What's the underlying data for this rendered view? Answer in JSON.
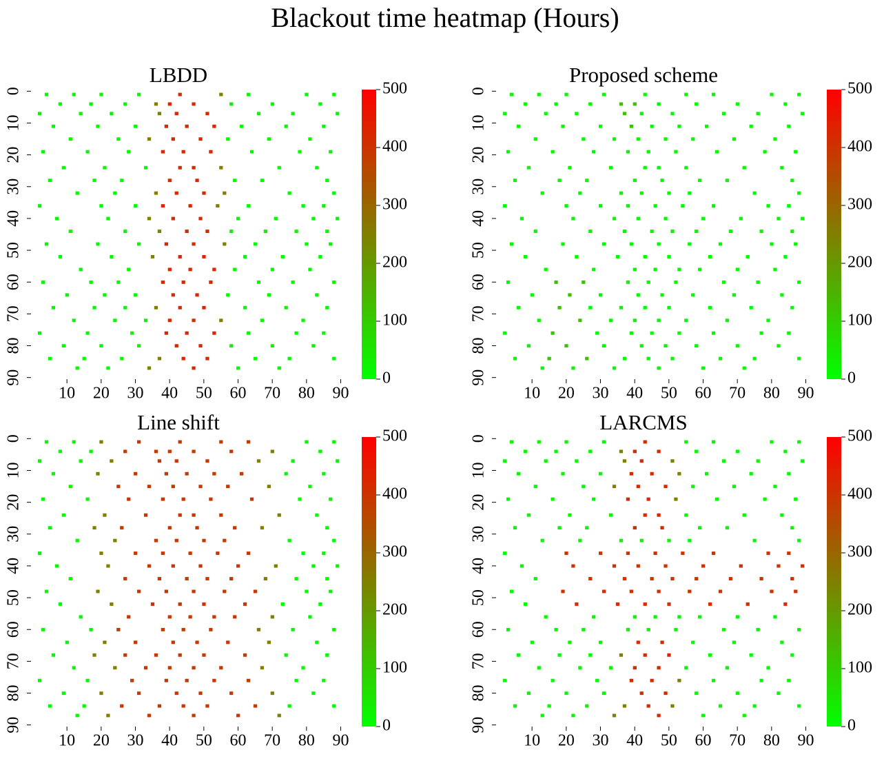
{
  "chart_data": {
    "type": "heatmap",
    "title": "Blackout time heatmap (Hours)",
    "xlim": [
      0,
      91
    ],
    "ylim": [
      0,
      91
    ],
    "xticks": [
      10,
      20,
      30,
      40,
      50,
      60,
      70,
      80,
      90
    ],
    "yticks": [
      0,
      10,
      20,
      30,
      40,
      50,
      60,
      70,
      80,
      90
    ],
    "colorbar": {
      "lim": [
        0,
        500
      ],
      "ticks": [
        0,
        100,
        200,
        300,
        400,
        500
      ],
      "colors": [
        "#00ff00",
        "#ff0000"
      ]
    },
    "x": [
      4,
      12,
      20,
      31,
      43,
      55,
      63,
      80,
      88,
      8,
      17,
      27,
      36,
      40,
      47,
      58,
      70,
      84,
      2,
      14,
      23,
      37,
      42,
      51,
      66,
      76,
      89,
      6,
      19,
      30,
      39,
      45,
      53,
      61,
      74,
      85,
      11,
      25,
      34,
      41,
      49,
      57,
      69,
      81,
      3,
      16,
      28,
      38,
      44,
      52,
      64,
      78,
      87,
      9,
      21,
      33,
      43,
      47,
      55,
      72,
      83,
      5,
      18,
      26,
      40,
      48,
      59,
      67,
      86,
      13,
      24,
      36,
      42,
      50,
      56,
      75,
      88,
      2,
      20,
      30,
      38,
      46,
      54,
      63,
      79,
      85,
      7,
      22,
      34,
      41,
      49,
      60,
      71,
      82,
      89,
      11,
      27,
      37,
      45,
      51,
      58,
      68,
      77,
      86,
      4,
      19,
      31,
      39,
      47,
      56,
      65,
      80,
      87,
      8,
      23,
      35,
      43,
      50,
      62,
      73,
      84,
      14,
      28,
      40,
      46,
      53,
      59,
      70,
      81,
      3,
      17,
      25,
      38,
      44,
      52,
      66,
      76,
      88,
      10,
      21,
      30,
      41,
      48,
      57,
      69,
      83,
      6,
      18,
      27,
      36,
      43,
      50,
      62,
      74,
      86,
      12,
      24,
      33,
      40,
      47,
      55,
      67,
      79,
      2,
      16,
      29,
      39,
      45,
      53,
      63,
      77,
      85,
      9,
      20,
      31,
      42,
      49,
      58,
      70,
      82,
      5,
      15,
      26,
      37,
      44,
      51,
      65,
      75,
      88,
      13,
      22,
      34,
      47,
      60,
      72
    ],
    "y": [
      1,
      1,
      1,
      1,
      1,
      1,
      1,
      1,
      1,
      4,
      4,
      4,
      4,
      4,
      4,
      4,
      4,
      4,
      7,
      7,
      7,
      7,
      7,
      7,
      7,
      7,
      7,
      11,
      11,
      11,
      11,
      11,
      11,
      11,
      11,
      11,
      15,
      15,
      15,
      15,
      15,
      15,
      15,
      15,
      19,
      19,
      19,
      19,
      19,
      19,
      19,
      19,
      19,
      24,
      24,
      24,
      24,
      24,
      24,
      24,
      24,
      28,
      28,
      28,
      28,
      28,
      28,
      28,
      28,
      32,
      32,
      32,
      32,
      32,
      32,
      32,
      32,
      36,
      36,
      36,
      36,
      36,
      36,
      36,
      36,
      36,
      40,
      40,
      40,
      40,
      40,
      40,
      40,
      40,
      40,
      44,
      44,
      44,
      44,
      44,
      44,
      44,
      44,
      44,
      48,
      48,
      48,
      48,
      48,
      48,
      48,
      48,
      48,
      52,
      52,
      52,
      52,
      52,
      52,
      52,
      52,
      56,
      56,
      56,
      56,
      56,
      56,
      56,
      56,
      60,
      60,
      60,
      60,
      60,
      60,
      60,
      60,
      60,
      64,
      64,
      64,
      64,
      64,
      64,
      64,
      64,
      68,
      68,
      68,
      68,
      68,
      68,
      68,
      68,
      68,
      72,
      72,
      72,
      72,
      72,
      72,
      72,
      72,
      76,
      76,
      76,
      76,
      76,
      76,
      76,
      76,
      76,
      80,
      80,
      80,
      80,
      80,
      80,
      80,
      80,
      84,
      84,
      84,
      84,
      84,
      84,
      84,
      84,
      84,
      87,
      87,
      87,
      87,
      87,
      87
    ],
    "panels": [
      {
        "title": "LBDD",
        "values": [
          12,
          12,
          12,
          12,
          420,
          250,
          12,
          12,
          12,
          12,
          12,
          12,
          250,
          420,
          420,
          12,
          12,
          12,
          12,
          12,
          12,
          250,
          420,
          420,
          12,
          12,
          12,
          12,
          12,
          12,
          420,
          420,
          420,
          12,
          12,
          12,
          12,
          12,
          250,
          420,
          420,
          12,
          12,
          12,
          12,
          12,
          12,
          420,
          420,
          420,
          12,
          12,
          12,
          12,
          12,
          12,
          420,
          420,
          250,
          12,
          12,
          12,
          12,
          12,
          420,
          420,
          12,
          12,
          12,
          12,
          12,
          250,
          420,
          420,
          250,
          12,
          12,
          12,
          12,
          12,
          420,
          420,
          250,
          12,
          12,
          12,
          12,
          12,
          250,
          420,
          420,
          12,
          12,
          12,
          12,
          12,
          12,
          250,
          420,
          420,
          12,
          12,
          12,
          12,
          12,
          12,
          12,
          420,
          420,
          250,
          12,
          12,
          12,
          12,
          12,
          250,
          420,
          420,
          12,
          12,
          12,
          12,
          12,
          420,
          420,
          420,
          12,
          12,
          12,
          12,
          12,
          12,
          420,
          420,
          420,
          12,
          12,
          12,
          12,
          12,
          12,
          420,
          420,
          12,
          12,
          12,
          12,
          12,
          12,
          250,
          420,
          420,
          12,
          12,
          12,
          12,
          12,
          12,
          420,
          420,
          250,
          12,
          12,
          12,
          12,
          12,
          420,
          420,
          420,
          12,
          12,
          12,
          12,
          12,
          12,
          420,
          420,
          12,
          12,
          12,
          12,
          12,
          12,
          250,
          420,
          420,
          12,
          12,
          12,
          12,
          12,
          250,
          420,
          12,
          12
        ]
      },
      {
        "title": "Proposed scheme",
        "values": [
          12,
          12,
          12,
          12,
          12,
          12,
          12,
          12,
          12,
          12,
          12,
          12,
          120,
          120,
          12,
          12,
          12,
          12,
          12,
          12,
          12,
          120,
          12,
          12,
          12,
          12,
          12,
          12,
          12,
          12,
          120,
          12,
          12,
          12,
          12,
          12,
          12,
          12,
          12,
          12,
          12,
          12,
          12,
          12,
          12,
          12,
          12,
          12,
          12,
          12,
          12,
          12,
          12,
          12,
          12,
          12,
          12,
          12,
          12,
          12,
          12,
          12,
          12,
          12,
          12,
          12,
          12,
          12,
          12,
          12,
          12,
          12,
          12,
          12,
          12,
          12,
          12,
          12,
          12,
          12,
          12,
          12,
          12,
          12,
          12,
          12,
          12,
          12,
          12,
          12,
          12,
          12,
          12,
          12,
          12,
          12,
          12,
          12,
          12,
          12,
          12,
          12,
          12,
          12,
          12,
          12,
          12,
          12,
          12,
          12,
          12,
          12,
          12,
          12,
          12,
          12,
          12,
          12,
          12,
          12,
          12,
          12,
          12,
          12,
          12,
          12,
          12,
          12,
          12,
          12,
          120,
          120,
          12,
          12,
          12,
          12,
          12,
          12,
          12,
          120,
          12,
          12,
          12,
          12,
          12,
          12,
          12,
          120,
          12,
          12,
          12,
          12,
          12,
          12,
          12,
          12,
          120,
          12,
          12,
          12,
          12,
          12,
          12,
          12,
          120,
          12,
          12,
          12,
          12,
          12,
          12,
          12,
          12,
          120,
          12,
          12,
          12,
          12,
          12,
          12,
          12,
          120,
          120,
          12,
          12,
          12,
          12,
          12,
          12,
          12,
          12,
          12,
          12,
          12,
          12
        ]
      },
      {
        "title": "Line shift",
        "values": [
          12,
          12,
          250,
          390,
          390,
          390,
          390,
          12,
          12,
          12,
          12,
          390,
          390,
          390,
          390,
          390,
          250,
          12,
          12,
          12,
          250,
          390,
          390,
          390,
          250,
          12,
          12,
          12,
          250,
          390,
          390,
          390,
          390,
          390,
          12,
          12,
          12,
          390,
          390,
          390,
          390,
          390,
          250,
          12,
          12,
          12,
          390,
          390,
          390,
          390,
          390,
          12,
          12,
          12,
          250,
          390,
          390,
          390,
          390,
          250,
          12,
          12,
          250,
          390,
          390,
          390,
          390,
          250,
          12,
          12,
          250,
          390,
          390,
          390,
          390,
          12,
          12,
          12,
          250,
          390,
          390,
          390,
          390,
          390,
          12,
          12,
          12,
          250,
          390,
          390,
          390,
          390,
          250,
          12,
          12,
          12,
          390,
          390,
          390,
          390,
          390,
          250,
          12,
          12,
          12,
          250,
          390,
          390,
          390,
          390,
          390,
          12,
          12,
          12,
          250,
          390,
          390,
          390,
          390,
          12,
          12,
          12,
          390,
          390,
          390,
          390,
          390,
          250,
          12,
          12,
          12,
          390,
          390,
          390,
          390,
          250,
          12,
          12,
          12,
          250,
          390,
          390,
          390,
          390,
          250,
          12,
          12,
          250,
          390,
          390,
          390,
          390,
          390,
          12,
          12,
          12,
          250,
          390,
          390,
          390,
          390,
          250,
          12,
          12,
          12,
          390,
          390,
          390,
          390,
          390,
          12,
          12,
          12,
          250,
          390,
          390,
          390,
          390,
          250,
          12,
          12,
          12,
          390,
          390,
          390,
          390,
          390,
          12,
          12,
          12,
          250,
          390,
          390,
          390,
          250
        ]
      },
      {
        "title": "LARCMS",
        "values": [
          12,
          12,
          12,
          12,
          420,
          12,
          12,
          12,
          12,
          12,
          12,
          12,
          250,
          420,
          420,
          12,
          12,
          12,
          12,
          12,
          12,
          250,
          420,
          250,
          12,
          12,
          12,
          12,
          12,
          12,
          420,
          420,
          250,
          12,
          12,
          12,
          12,
          12,
          250,
          420,
          420,
          12,
          12,
          12,
          12,
          12,
          12,
          420,
          420,
          250,
          12,
          12,
          12,
          12,
          12,
          12,
          420,
          420,
          12,
          12,
          12,
          12,
          12,
          12,
          420,
          420,
          12,
          12,
          12,
          12,
          12,
          12,
          12,
          12,
          12,
          12,
          12,
          12,
          400,
          400,
          400,
          400,
          400,
          400,
          400,
          400,
          12,
          400,
          400,
          400,
          400,
          400,
          400,
          400,
          400,
          12,
          400,
          400,
          400,
          400,
          400,
          400,
          400,
          400,
          12,
          400,
          400,
          400,
          400,
          400,
          400,
          400,
          400,
          12,
          400,
          400,
          400,
          400,
          400,
          400,
          400,
          12,
          12,
          12,
          12,
          12,
          12,
          12,
          12,
          12,
          12,
          12,
          12,
          12,
          12,
          12,
          12,
          12,
          12,
          12,
          12,
          420,
          420,
          12,
          12,
          12,
          12,
          12,
          12,
          250,
          420,
          420,
          12,
          12,
          12,
          12,
          12,
          12,
          420,
          420,
          12,
          12,
          12,
          12,
          12,
          12,
          420,
          420,
          250,
          12,
          12,
          12,
          12,
          12,
          12,
          420,
          420,
          12,
          12,
          12,
          12,
          12,
          12,
          250,
          420,
          250,
          12,
          12,
          12,
          12,
          12,
          250,
          420,
          12,
          12
        ]
      }
    ]
  }
}
